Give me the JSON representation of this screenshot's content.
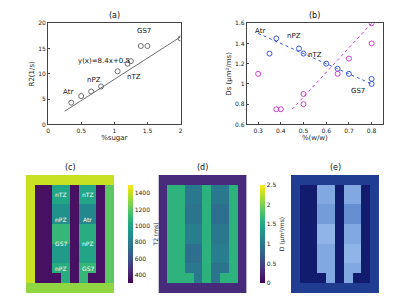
{
  "chart_data": [
    {
      "type": "scatter",
      "title": "(a)",
      "x_label": "%sugar",
      "y_label": "R2(1/s)",
      "xlim": [
        0,
        2
      ],
      "xticks": [
        0,
        0.5,
        1,
        1.5,
        2
      ],
      "ylim": [
        0,
        20
      ],
      "yticks": [
        0,
        5,
        10,
        15,
        20
      ],
      "grid": false,
      "series": [
        {
          "color": "#6e6e6e",
          "marker": "circle-open",
          "line_style": "none",
          "x": [
            0.35,
            0.5,
            0.65,
            0.8,
            1.05,
            1.2,
            1.25,
            1.4,
            1.5,
            2.0
          ],
          "values": [
            4.3,
            5.6,
            6.5,
            7.5,
            10.5,
            12,
            12.5,
            15.5,
            15.5,
            17
          ]
        },
        {
          "color": "#6e6e6e",
          "marker": "none",
          "line_style": "solid",
          "x": [
            0.25,
            2.0
          ],
          "values": [
            2.6,
            17.3
          ]
        }
      ],
      "annotations": [
        {
          "text": "Atr",
          "x": 0.3,
          "y": 6.5
        },
        {
          "text": "nPZ",
          "x": 0.7,
          "y": 8.8
        },
        {
          "text": "nTZ",
          "x": 1.3,
          "y": 9.3
        },
        {
          "text": "GS7",
          "x": 1.45,
          "y": 18.5
        },
        {
          "text": "y(x)=8.4x+0.5",
          "x": 0.85,
          "y": 12.5
        }
      ]
    },
    {
      "type": "scatter",
      "title": "(b)",
      "x_label": "%(w/w)",
      "y_label": "Ds (μm²/ms)",
      "xlim": [
        0.25,
        0.85
      ],
      "xticks": [
        0.3,
        0.4,
        0.5,
        0.6,
        0.7,
        0.8
      ],
      "ylim": [
        0.6,
        1.6
      ],
      "yticks": [
        0.6,
        0.8,
        1,
        1.2,
        1.4,
        1.6
      ],
      "grid": false,
      "series": [
        {
          "color": "#3b5bdb",
          "marker": "circle-open",
          "line_style": "none",
          "x": [
            0.35,
            0.38,
            0.48,
            0.5,
            0.6,
            0.65,
            0.7,
            0.8,
            0.8
          ],
          "values": [
            1.3,
            1.45,
            1.35,
            1.3,
            1.2,
            1.15,
            1.1,
            1.05,
            1.0
          ]
        },
        {
          "color": "#d63ad6",
          "marker": "circle-open",
          "line_style": "none",
          "x": [
            0.3,
            0.38,
            0.4,
            0.5,
            0.5,
            0.65,
            0.7,
            0.8,
            0.8
          ],
          "values": [
            1.1,
            0.75,
            0.75,
            0.8,
            0.9,
            1.1,
            1.25,
            1.4,
            1.6
          ]
        },
        {
          "color": "#3b5bdb",
          "marker": "none",
          "line_style": "dot",
          "x": [
            0.3,
            0.8
          ],
          "values": [
            1.5,
            1.0
          ]
        },
        {
          "color": "#d63ad6",
          "marker": "none",
          "line_style": "dot",
          "x": [
            0.45,
            0.8
          ],
          "values": [
            0.75,
            1.6
          ]
        }
      ],
      "annotations": [
        {
          "text": "Atr",
          "x": 0.31,
          "y": 1.52
        },
        {
          "text": "nPZ",
          "x": 0.46,
          "y": 1.47
        },
        {
          "text": "nTZ",
          "x": 0.55,
          "y": 1.29
        },
        {
          "text": "GS7",
          "x": 0.74,
          "y": 0.93
        }
      ]
    },
    {
      "type": "heatmap",
      "title": "(c)",
      "tick_labels": false,
      "zlim": [
        300,
        1500
      ],
      "zticks": [
        400,
        600,
        800,
        1000,
        1200,
        1400
      ],
      "colorbar_title": "T2 (ms)",
      "cells": [
        [
          1400,
          1400,
          1400,
          1400,
          1400,
          1400,
          1400,
          1400,
          1400,
          1400
        ],
        [
          1400,
          350,
          350,
          1000,
          1000,
          350,
          1000,
          1000,
          350,
          1200
        ],
        [
          1400,
          350,
          350,
          1000,
          1000,
          350,
          1000,
          1000,
          350,
          1200
        ],
        [
          1400,
          350,
          350,
          900,
          900,
          350,
          850,
          850,
          350,
          1200
        ],
        [
          1400,
          350,
          350,
          900,
          900,
          350,
          850,
          850,
          350,
          1200
        ],
        [
          1400,
          350,
          350,
          1100,
          1100,
          350,
          1050,
          1050,
          350,
          1200
        ],
        [
          1400,
          350,
          350,
          1100,
          1100,
          350,
          1050,
          1050,
          350,
          1200
        ],
        [
          1400,
          350,
          350,
          950,
          950,
          350,
          1000,
          1000,
          350,
          1200
        ],
        [
          1400,
          350,
          350,
          950,
          950,
          350,
          1000,
          1000,
          350,
          1200
        ],
        [
          1400,
          350,
          350,
          1050,
          1050,
          350,
          1100,
          1100,
          350,
          1200
        ],
        [
          1400,
          350,
          350,
          350,
          1050,
          350,
          1100,
          350,
          350,
          1200
        ],
        [
          1300,
          1300,
          1300,
          1300,
          1300,
          1300,
          1300,
          1300,
          1300,
          1300
        ]
      ],
      "annotations": [
        {
          "text": "nTZ",
          "x": 3.5,
          "y": 1.5
        },
        {
          "text": "nTZ",
          "x": 6.5,
          "y": 1.5
        },
        {
          "text": "nPZ",
          "x": 3.5,
          "y": 4
        },
        {
          "text": "Atr",
          "x": 6.5,
          "y": 4
        },
        {
          "text": "GS7",
          "x": 3.5,
          "y": 6.5
        },
        {
          "text": "nPZ",
          "x": 6.5,
          "y": 6.5
        },
        {
          "text": "nPZ",
          "x": 3.5,
          "y": 9
        },
        {
          "text": "GS7",
          "x": 6.5,
          "y": 9
        }
      ]
    },
    {
      "type": "heatmap",
      "title": "(d)",
      "tick_labels": false,
      "zlim": [
        0,
        2.5
      ],
      "zticks": [
        0,
        0.5,
        1,
        1.5,
        2,
        2.5
      ],
      "colorbar_title": "D (μm²/ms)",
      "cells": [
        [
          0.3,
          0.3,
          0.3,
          0.3,
          0.3,
          0.3,
          0.3,
          0.3,
          0.3,
          0.3
        ],
        [
          0.3,
          1.6,
          1.6,
          1.0,
          1.0,
          1.6,
          1.0,
          1.0,
          1.6,
          0.3
        ],
        [
          0.3,
          1.6,
          1.6,
          1.0,
          1.0,
          1.6,
          1.0,
          1.0,
          1.6,
          0.3
        ],
        [
          0.3,
          1.6,
          1.6,
          0.95,
          0.95,
          1.6,
          0.9,
          0.9,
          1.6,
          0.3
        ],
        [
          0.3,
          1.6,
          1.6,
          0.95,
          0.95,
          1.6,
          0.9,
          0.9,
          1.6,
          0.3
        ],
        [
          0.3,
          1.6,
          1.6,
          1.05,
          1.05,
          1.6,
          1.0,
          1.0,
          1.6,
          0.3
        ],
        [
          0.3,
          1.6,
          1.6,
          1.05,
          1.05,
          1.6,
          1.0,
          1.0,
          1.6,
          0.3
        ],
        [
          0.3,
          1.6,
          1.6,
          0.9,
          0.9,
          1.6,
          1.05,
          1.05,
          1.6,
          0.3
        ],
        [
          0.3,
          1.6,
          1.6,
          0.9,
          0.9,
          1.6,
          1.05,
          1.05,
          1.6,
          0.3
        ],
        [
          0.3,
          1.6,
          1.6,
          1.0,
          1.0,
          1.6,
          0.95,
          0.95,
          1.6,
          0.3
        ],
        [
          0.3,
          1.6,
          1.6,
          1.6,
          1.0,
          1.6,
          0.95,
          1.6,
          1.6,
          0.3
        ],
        [
          0.3,
          0.3,
          0.3,
          0.3,
          0.3,
          0.3,
          0.3,
          0.3,
          0.3,
          0.3
        ]
      ]
    },
    {
      "type": "heatmap",
      "title": "(e)",
      "tick_labels": false,
      "zlim": [
        0,
        1
      ],
      "cells": [
        [
          0.3,
          0.3,
          0.3,
          0.3,
          0.3,
          0.3,
          0.3,
          0.3,
          0.3,
          0.3
        ],
        [
          0.3,
          0.1,
          0.1,
          0.8,
          0.8,
          0.1,
          0.8,
          0.8,
          0.1,
          0.3
        ],
        [
          0.3,
          0.1,
          0.1,
          0.8,
          0.8,
          0.1,
          0.8,
          0.8,
          0.1,
          0.3
        ],
        [
          0.3,
          0.1,
          0.1,
          0.75,
          0.75,
          0.1,
          0.7,
          0.7,
          0.1,
          0.3
        ],
        [
          0.3,
          0.1,
          0.1,
          0.75,
          0.75,
          0.1,
          0.7,
          0.7,
          0.1,
          0.3
        ],
        [
          0.3,
          0.1,
          0.1,
          0.85,
          0.85,
          0.1,
          0.8,
          0.8,
          0.1,
          0.3
        ],
        [
          0.3,
          0.1,
          0.1,
          0.85,
          0.85,
          0.1,
          0.8,
          0.8,
          0.1,
          0.3
        ],
        [
          0.3,
          0.1,
          0.1,
          0.8,
          0.8,
          0.1,
          0.85,
          0.85,
          0.1,
          0.3
        ],
        [
          0.3,
          0.1,
          0.1,
          0.8,
          0.8,
          0.1,
          0.85,
          0.85,
          0.1,
          0.3
        ],
        [
          0.3,
          0.1,
          0.1,
          0.8,
          0.8,
          0.1,
          0.8,
          0.8,
          0.1,
          0.3
        ],
        [
          0.3,
          0.1,
          0.1,
          0.1,
          0.8,
          0.1,
          0.8,
          0.1,
          0.1,
          0.3
        ],
        [
          0.3,
          0.3,
          0.3,
          0.3,
          0.3,
          0.3,
          0.3,
          0.3,
          0.3,
          0.3
        ]
      ]
    }
  ]
}
